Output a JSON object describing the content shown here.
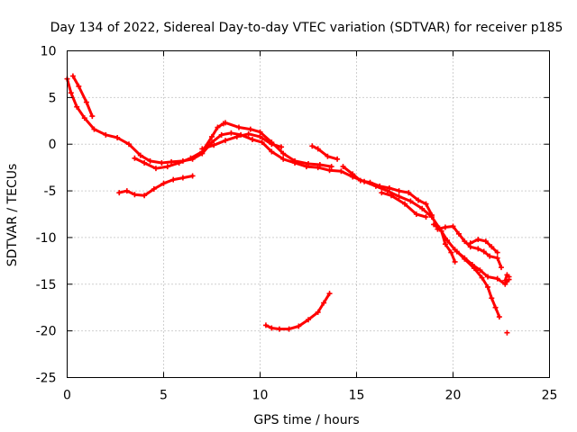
{
  "chart_data": {
    "type": "scatter",
    "title": "Day 134 of 2022, Sidereal Day-to-day VTEC variation (SDTVAR) for receiver p185",
    "xlabel": "GPS time / hours",
    "ylabel": "SDTVAR / TECUs",
    "xlim": [
      0,
      25
    ],
    "ylim": [
      -25,
      10
    ],
    "x_ticks": [
      0,
      5,
      10,
      15,
      20,
      25
    ],
    "y_ticks": [
      -25,
      -20,
      -15,
      -10,
      -5,
      0,
      5,
      10
    ],
    "grid": true,
    "marker_color": "#ff0000",
    "series": [
      {
        "name": "track-1",
        "points": [
          [
            0.0,
            7.0
          ],
          [
            0.2,
            5.5
          ],
          [
            0.5,
            4.0
          ],
          [
            0.9,
            2.8
          ],
          [
            1.4,
            1.6
          ],
          [
            2.0,
            1.0
          ],
          [
            2.6,
            0.7
          ],
          [
            3.2,
            0.0
          ],
          [
            3.8,
            -1.2
          ],
          [
            4.3,
            -1.8
          ],
          [
            4.9,
            -2.0
          ],
          [
            5.4,
            -1.9
          ],
          [
            6.0,
            -1.8
          ],
          [
            6.5,
            -1.6
          ],
          [
            7.0,
            -1.0
          ],
          [
            7.5,
            0.2
          ],
          [
            8.0,
            1.0
          ],
          [
            8.5,
            1.2
          ],
          [
            9.0,
            1.0
          ],
          [
            9.6,
            0.5
          ],
          [
            10.1,
            0.2
          ],
          [
            10.6,
            -0.8
          ],
          [
            11.2,
            -1.6
          ],
          [
            11.8,
            -2.0
          ],
          [
            12.4,
            -2.4
          ],
          [
            13.0,
            -2.5
          ],
          [
            13.6,
            -2.8
          ],
          [
            14.2,
            -2.9
          ],
          [
            14.8,
            -3.5
          ],
          [
            15.4,
            -4.0
          ],
          [
            16.0,
            -4.5
          ],
          [
            16.6,
            -5.0
          ],
          [
            17.2,
            -5.6
          ],
          [
            17.8,
            -6.1
          ],
          [
            18.4,
            -6.9
          ],
          [
            18.9,
            -7.8
          ],
          [
            19.3,
            -9.0
          ],
          [
            19.7,
            -10.3
          ],
          [
            20.1,
            -11.3
          ],
          [
            20.6,
            -12.3
          ],
          [
            21.1,
            -13.3
          ],
          [
            21.5,
            -14.3
          ],
          [
            21.8,
            -15.3
          ],
          [
            22.0,
            -16.5
          ],
          [
            22.2,
            -17.5
          ],
          [
            22.4,
            -18.5
          ]
        ]
      },
      {
        "name": "track-2",
        "points": [
          [
            0.3,
            7.3
          ],
          [
            0.6,
            6.2
          ],
          [
            1.0,
            4.5
          ],
          [
            1.3,
            3.0
          ]
        ]
      },
      {
        "name": "track-3",
        "points": [
          [
            2.7,
            -5.2
          ],
          [
            3.1,
            -5.0
          ],
          [
            3.5,
            -5.4
          ],
          [
            4.0,
            -5.5
          ],
          [
            4.5,
            -4.8
          ],
          [
            5.0,
            -4.2
          ],
          [
            5.5,
            -3.8
          ],
          [
            6.0,
            -3.6
          ],
          [
            6.5,
            -3.4
          ]
        ]
      },
      {
        "name": "track-4",
        "points": [
          [
            3.5,
            -1.5
          ],
          [
            4.0,
            -2.0
          ],
          [
            4.6,
            -2.6
          ],
          [
            5.2,
            -2.4
          ],
          [
            5.8,
            -2.0
          ],
          [
            6.4,
            -1.5
          ],
          [
            7.0,
            -0.8
          ],
          [
            7.5,
            0.8
          ],
          [
            7.8,
            1.8
          ],
          [
            8.1,
            2.2
          ]
        ]
      },
      {
        "name": "track-5",
        "points": [
          [
            7.0,
            -0.5
          ],
          [
            7.6,
            -0.1
          ],
          [
            8.2,
            0.4
          ],
          [
            8.8,
            0.8
          ],
          [
            9.4,
            1.1
          ],
          [
            10.0,
            0.8
          ],
          [
            10.6,
            0.0
          ],
          [
            11.1,
            -0.3
          ]
        ]
      },
      {
        "name": "track-6",
        "points": [
          [
            8.2,
            2.3
          ],
          [
            8.9,
            1.8
          ],
          [
            9.5,
            1.6
          ],
          [
            10.0,
            1.3
          ],
          [
            10.6,
            0.2
          ],
          [
            11.2,
            -1.0
          ],
          [
            11.8,
            -1.8
          ],
          [
            12.5,
            -2.1
          ],
          [
            13.1,
            -2.2
          ],
          [
            13.7,
            -2.4
          ]
        ]
      },
      {
        "name": "track-7",
        "points": [
          [
            12.7,
            -0.2
          ],
          [
            13.0,
            -0.5
          ],
          [
            13.5,
            -1.3
          ],
          [
            14.0,
            -1.6
          ]
        ]
      },
      {
        "name": "track-8",
        "points": [
          [
            14.3,
            -2.4
          ],
          [
            14.8,
            -3.2
          ],
          [
            15.2,
            -3.9
          ],
          [
            15.7,
            -4.1
          ],
          [
            16.2,
            -4.5
          ],
          [
            16.7,
            -4.7
          ],
          [
            17.2,
            -5.0
          ],
          [
            17.7,
            -5.2
          ],
          [
            18.2,
            -6.0
          ],
          [
            18.6,
            -6.4
          ],
          [
            18.9,
            -7.6
          ]
        ]
      },
      {
        "name": "track-9",
        "points": [
          [
            16.3,
            -5.2
          ],
          [
            16.8,
            -5.5
          ],
          [
            17.5,
            -6.4
          ],
          [
            18.1,
            -7.5
          ],
          [
            18.6,
            -7.8
          ]
        ]
      },
      {
        "name": "track-10",
        "points": [
          [
            19.0,
            -8.6
          ],
          [
            19.4,
            -9.3
          ],
          [
            19.6,
            -10.7
          ],
          [
            19.9,
            -11.6
          ],
          [
            20.1,
            -12.6
          ]
        ]
      },
      {
        "name": "track-11",
        "points": [
          [
            19.2,
            -9.1
          ],
          [
            19.6,
            -8.9
          ],
          [
            20.0,
            -8.8
          ],
          [
            20.3,
            -9.6
          ],
          [
            20.6,
            -10.4
          ],
          [
            20.9,
            -11.0
          ],
          [
            21.3,
            -11.2
          ],
          [
            21.6,
            -11.5
          ],
          [
            21.9,
            -12.0
          ],
          [
            22.3,
            -12.2
          ],
          [
            22.5,
            -13.2
          ]
        ]
      },
      {
        "name": "track-12",
        "points": [
          [
            20.2,
            -11.5
          ],
          [
            20.6,
            -12.2
          ],
          [
            21.0,
            -12.9
          ],
          [
            21.4,
            -13.5
          ],
          [
            21.8,
            -14.2
          ],
          [
            22.3,
            -14.4
          ],
          [
            22.7,
            -15.0
          ],
          [
            22.9,
            -14.5
          ]
        ]
      },
      {
        "name": "track-13",
        "points": [
          [
            20.9,
            -10.6
          ],
          [
            21.3,
            -10.2
          ],
          [
            21.7,
            -10.4
          ],
          [
            22.0,
            -11.0
          ],
          [
            22.3,
            -11.6
          ]
        ]
      },
      {
        "name": "track-14",
        "points": [
          [
            22.7,
            -14.6
          ],
          [
            22.8,
            -14.0
          ],
          [
            22.9,
            -14.2
          ]
        ]
      },
      {
        "name": "track-15",
        "points": [
          [
            22.8,
            -20.2
          ]
        ]
      },
      {
        "name": "track-16",
        "points": [
          [
            10.3,
            -19.4
          ],
          [
            10.6,
            -19.7
          ],
          [
            11.0,
            -19.8
          ],
          [
            11.5,
            -19.8
          ],
          [
            12.0,
            -19.5
          ],
          [
            12.5,
            -18.8
          ],
          [
            13.0,
            -18.0
          ],
          [
            13.3,
            -17.0
          ],
          [
            13.6,
            -16.0
          ]
        ]
      }
    ]
  }
}
